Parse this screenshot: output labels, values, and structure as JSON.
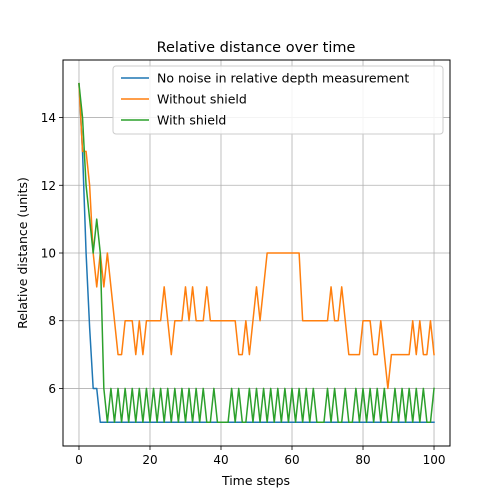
{
  "chart_data": {
    "type": "line",
    "title": "Relative distance over time",
    "xlabel": "Time steps",
    "ylabel": "Relative distance (units)",
    "xlim": [
      -4.5,
      104.5
    ],
    "ylim": [
      4.3,
      15.7
    ],
    "xticks": [
      0,
      20,
      40,
      60,
      80,
      100
    ],
    "yticks": [
      6,
      8,
      10,
      12,
      14
    ],
    "grid": true,
    "legend_position": "top-right",
    "series": [
      {
        "name": "No noise in relative depth measurement",
        "color": "#1f77b4",
        "x": [
          0,
          1,
          2,
          3,
          4,
          5,
          6,
          7,
          8,
          9,
          10,
          11,
          12,
          13,
          14,
          15,
          16,
          17,
          18,
          19,
          20,
          21,
          22,
          23,
          24,
          25,
          26,
          27,
          28,
          29,
          30,
          31,
          32,
          33,
          34,
          35,
          36,
          37,
          38,
          39,
          40,
          41,
          42,
          43,
          44,
          45,
          46,
          47,
          48,
          49,
          50,
          51,
          52,
          53,
          54,
          55,
          56,
          57,
          58,
          59,
          60,
          61,
          62,
          63,
          64,
          65,
          66,
          67,
          68,
          69,
          70,
          71,
          72,
          73,
          74,
          75,
          76,
          77,
          78,
          79,
          80,
          81,
          82,
          83,
          84,
          85,
          86,
          87,
          88,
          89,
          90,
          91,
          92,
          93,
          94,
          95,
          96,
          97,
          98,
          99,
          100
        ],
        "y": [
          15,
          13,
          10,
          7.8,
          6,
          6,
          5,
          5,
          5,
          5,
          5,
          5,
          5,
          5,
          5,
          5,
          5,
          5,
          5,
          5,
          5,
          5,
          5,
          5,
          5,
          5,
          5,
          5,
          5,
          5,
          5,
          5,
          5,
          5,
          5,
          5,
          5,
          5,
          5,
          5,
          5,
          5,
          5,
          5,
          5,
          5,
          5,
          5,
          5,
          5,
          5,
          5,
          5,
          5,
          5,
          5,
          5,
          5,
          5,
          5,
          5,
          5,
          5,
          5,
          5,
          5,
          5,
          5,
          5,
          5,
          5,
          5,
          5,
          5,
          5,
          5,
          5,
          5,
          5,
          5,
          5,
          5,
          5,
          5,
          5,
          5,
          5,
          5,
          5,
          5,
          5,
          5,
          5,
          5,
          5,
          5,
          5,
          5,
          5,
          5,
          5
        ]
      },
      {
        "name": "Without shield",
        "color": "#ff7f0e",
        "x": [
          0,
          1,
          2,
          3,
          4,
          5,
          6,
          7,
          8,
          9,
          10,
          11,
          12,
          13,
          14,
          15,
          16,
          17,
          18,
          19,
          20,
          21,
          22,
          23,
          24,
          25,
          26,
          27,
          28,
          29,
          30,
          31,
          32,
          33,
          34,
          35,
          36,
          37,
          38,
          39,
          40,
          41,
          42,
          43,
          44,
          45,
          46,
          47,
          48,
          49,
          50,
          51,
          52,
          53,
          54,
          55,
          56,
          57,
          58,
          59,
          60,
          61,
          62,
          63,
          64,
          65,
          66,
          67,
          68,
          69,
          70,
          71,
          72,
          73,
          74,
          75,
          76,
          77,
          78,
          79,
          80,
          81,
          82,
          83,
          84,
          85,
          86,
          87,
          88,
          89,
          90,
          91,
          92,
          93,
          94,
          95,
          96,
          97,
          98,
          99,
          100
        ],
        "y": [
          15,
          13,
          13,
          12,
          10,
          9,
          10,
          9,
          10,
          9,
          8,
          7,
          7,
          8,
          8,
          8,
          7,
          8,
          7,
          8,
          8,
          8,
          8,
          8,
          9,
          8,
          7,
          8,
          8,
          8,
          9,
          8,
          9,
          8,
          8,
          8,
          9,
          8,
          8,
          8,
          8,
          8,
          8,
          8,
          8,
          7,
          7,
          8,
          7,
          8,
          9,
          8,
          9,
          10,
          10,
          10,
          10,
          10,
          10,
          10,
          10,
          10,
          10,
          8,
          8,
          8,
          8,
          8,
          8,
          8,
          8,
          9,
          8,
          8,
          9,
          8,
          7,
          7,
          7,
          7,
          8,
          8,
          8,
          7,
          7,
          8,
          7,
          6,
          7,
          7,
          7,
          7,
          7,
          7,
          8,
          7,
          8,
          7,
          7,
          8,
          7
        ]
      },
      {
        "name": "With shield",
        "color": "#2ca02c",
        "x": [
          0,
          1,
          2,
          3,
          4,
          5,
          6,
          7,
          8,
          9,
          10,
          11,
          12,
          13,
          14,
          15,
          16,
          17,
          18,
          19,
          20,
          21,
          22,
          23,
          24,
          25,
          26,
          27,
          28,
          29,
          30,
          31,
          32,
          33,
          34,
          35,
          36,
          37,
          38,
          39,
          40,
          41,
          42,
          43,
          44,
          45,
          46,
          47,
          48,
          49,
          50,
          51,
          52,
          53,
          54,
          55,
          56,
          57,
          58,
          59,
          60,
          61,
          62,
          63,
          64,
          65,
          66,
          67,
          68,
          69,
          70,
          71,
          72,
          73,
          74,
          75,
          76,
          77,
          78,
          79,
          80,
          81,
          82,
          83,
          84,
          85,
          86,
          87,
          88,
          89,
          90,
          91,
          92,
          93,
          94,
          95,
          96,
          97,
          98,
          99,
          100
        ],
        "y": [
          15,
          14,
          12,
          11,
          10,
          11,
          10,
          6,
          5,
          6,
          5,
          6,
          5,
          6,
          5,
          6,
          5,
          6,
          5,
          6,
          5,
          6,
          5,
          6,
          5,
          6,
          5,
          6,
          5,
          6,
          5,
          6,
          5,
          6,
          5,
          6,
          5,
          5,
          6,
          5,
          5,
          5,
          5,
          6,
          5,
          6,
          5,
          5,
          6,
          5,
          6,
          5,
          6,
          5,
          6,
          5,
          6,
          5,
          6,
          5,
          6,
          5,
          6,
          5,
          6,
          5,
          6,
          5,
          5,
          5,
          6,
          5,
          6,
          5,
          5,
          6,
          5,
          5,
          6,
          5,
          6,
          5,
          6,
          5,
          6,
          5,
          6,
          5,
          5,
          6,
          5,
          6,
          5,
          6,
          5,
          6,
          5,
          6,
          5,
          5,
          6
        ]
      }
    ]
  }
}
